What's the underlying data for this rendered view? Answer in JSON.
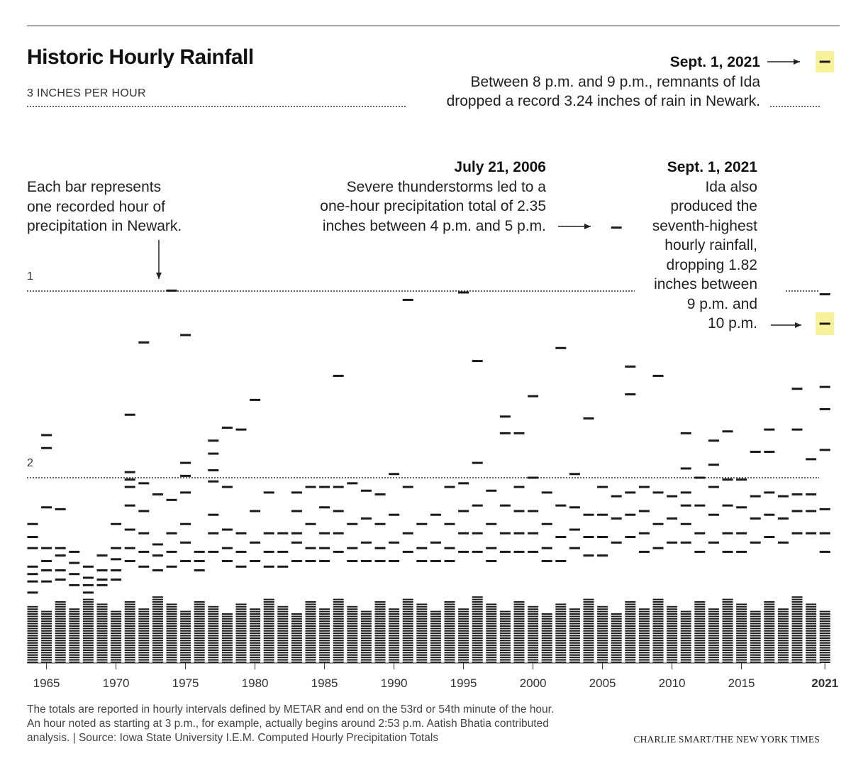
{
  "title": "Historic Hourly Rainfall",
  "reference_lines": [
    {
      "value": 3,
      "label": "3 INCHES PER HOUR"
    },
    {
      "value": 2,
      "label": "2"
    },
    {
      "value": 1,
      "label": "1"
    }
  ],
  "annotations": {
    "record": {
      "date": "Sept. 1, 2021",
      "text_lines": [
        "Between 8 p.m. and 9 p.m., remnants of Ida",
        "dropped a record 3.24 inches of rain in Newark."
      ]
    },
    "explainer": {
      "text_lines": [
        "Each bar represents",
        "one recorded hour of",
        "precipitation in Newark."
      ]
    },
    "july2006": {
      "date": "July 21, 2006",
      "text_lines": [
        "Severe thunderstorms led to a",
        "one-hour precipitation total of 2.35",
        "inches between 4 p.m. and 5 p.m."
      ]
    },
    "seventh": {
      "date": "Sept. 1, 2021",
      "text_lines": [
        "Ida also",
        "produced the",
        "seventh-highest",
        "hourly rainfall,",
        "dropping 1.82",
        "inches between",
        "9 p.m. and",
        "10 p.m."
      ]
    }
  },
  "footnote_lines": [
    "The totals are reported in hourly intervals defined by METAR and end on the 53rd or 54th minute of the hour.",
    "An hour noted as starting at 3 p.m., for example, actually begins around 2:53 p.m. Aatish Bhatia contributed",
    "analysis. | Source: Iowa State University I.E.M. Computed Hourly Precipitation Totals"
  ],
  "credit": "CHARLIE SMART/THE NEW YORK TIMES",
  "colors": {
    "bar": "#1a1a1a",
    "highlight": "#f7f19a",
    "text": "#222222"
  },
  "chart_data": {
    "type": "scatter",
    "description_units": "inches per hour",
    "x_tick_labels": [
      "1965",
      "1970",
      "1975",
      "1980",
      "1985",
      "1990",
      "1995",
      "2000",
      "2005",
      "2010",
      "2015",
      "2021"
    ],
    "x_ticks": [
      1965,
      1970,
      1975,
      1980,
      1985,
      1990,
      1995,
      2000,
      2005,
      2010,
      2015,
      2021
    ],
    "xlim": [
      1964,
      2021
    ],
    "ylim": [
      0,
      3.24
    ],
    "grid": false,
    "notable_hours": [
      {
        "year": 2021,
        "value": 3.24
      },
      {
        "year": 2006,
        "value": 2.35
      },
      {
        "year": 2021,
        "value": 1.82
      }
    ],
    "points": [
      {
        "year": 1964,
        "values": [
          0.75,
          0.68,
          0.62,
          0.52,
          0.48,
          0.44,
          0.38
        ]
      },
      {
        "year": 1965,
        "values": [
          1.23,
          1.16,
          0.84,
          0.62,
          0.55,
          0.5,
          0.44
        ]
      },
      {
        "year": 1966,
        "values": [
          0.83,
          0.62,
          0.58,
          0.5,
          0.45
        ]
      },
      {
        "year": 1967,
        "values": [
          0.6,
          0.54,
          0.48,
          0.42
        ]
      },
      {
        "year": 1968,
        "values": [
          0.52,
          0.46,
          0.42,
          0.38
        ]
      },
      {
        "year": 1969,
        "values": [
          0.58,
          0.5,
          0.45,
          0.42
        ]
      },
      {
        "year": 1970,
        "values": [
          0.75,
          0.62,
          0.56,
          0.5,
          0.45
        ]
      },
      {
        "year": 1971,
        "values": [
          1.34,
          1.03,
          0.99,
          0.95,
          0.85,
          0.72,
          0.62,
          0.55
        ]
      },
      {
        "year": 1972,
        "values": [
          1.73,
          0.97,
          0.82,
          0.7,
          0.6,
          0.52
        ]
      },
      {
        "year": 1973,
        "values": [
          0.91,
          0.64,
          0.58,
          0.5
        ]
      },
      {
        "year": 1974,
        "values": [
          2.01,
          0.88,
          0.7,
          0.6,
          0.52
        ]
      },
      {
        "year": 1975,
        "values": [
          1.77,
          1.08,
          1.01,
          0.92,
          0.75,
          0.65,
          0.55
        ]
      },
      {
        "year": 1976,
        "values": [
          0.6,
          0.55,
          0.5
        ]
      },
      {
        "year": 1977,
        "values": [
          1.2,
          1.13,
          1.04,
          0.98,
          0.8,
          0.7,
          0.6
        ]
      },
      {
        "year": 1978,
        "values": [
          1.27,
          0.95,
          0.72,
          0.62,
          0.55
        ]
      },
      {
        "year": 1979,
        "values": [
          1.26,
          0.7,
          0.6,
          0.52
        ]
      },
      {
        "year": 1980,
        "values": [
          1.42,
          0.82,
          0.65,
          0.55
        ]
      },
      {
        "year": 1981,
        "values": [
          0.92,
          0.7,
          0.6,
          0.52
        ]
      },
      {
        "year": 1982,
        "values": [
          0.7,
          0.6,
          0.52
        ]
      },
      {
        "year": 1983,
        "values": [
          0.92,
          0.82,
          0.7,
          0.65,
          0.55
        ]
      },
      {
        "year": 1984,
        "values": [
          0.95,
          0.75,
          0.62,
          0.55
        ]
      },
      {
        "year": 1985,
        "values": [
          0.95,
          0.84,
          0.7,
          0.62,
          0.55
        ]
      },
      {
        "year": 1986,
        "values": [
          1.55,
          0.95,
          0.82,
          0.7,
          0.6
        ]
      },
      {
        "year": 1987,
        "values": [
          0.97,
          0.75,
          0.62,
          0.55
        ]
      },
      {
        "year": 1988,
        "values": [
          0.93,
          0.78,
          0.65,
          0.55
        ]
      },
      {
        "year": 1989,
        "values": [
          0.91,
          0.75,
          0.62,
          0.55
        ]
      },
      {
        "year": 1990,
        "values": [
          1.02,
          0.8,
          0.65,
          0.55
        ]
      },
      {
        "year": 1991,
        "values": [
          1.96,
          0.95,
          0.7,
          0.6
        ]
      },
      {
        "year": 1992,
        "values": [
          0.75,
          0.62,
          0.55
        ]
      },
      {
        "year": 1993,
        "values": [
          0.8,
          0.65,
          0.55
        ]
      },
      {
        "year": 1994,
        "values": [
          0.95,
          0.75,
          0.62,
          0.55
        ]
      },
      {
        "year": 1995,
        "values": [
          2.0,
          0.97,
          0.82,
          0.7,
          0.6
        ]
      },
      {
        "year": 1996,
        "values": [
          1.63,
          1.08,
          0.85,
          0.7,
          0.6
        ]
      },
      {
        "year": 1997,
        "values": [
          0.93,
          0.75,
          0.62,
          0.55
        ]
      },
      {
        "year": 1998,
        "values": [
          1.33,
          1.24,
          0.85,
          0.7,
          0.6
        ]
      },
      {
        "year": 1999,
        "values": [
          1.24,
          0.95,
          0.82,
          0.7,
          0.6
        ]
      },
      {
        "year": 2000,
        "values": [
          1.44,
          1.0,
          0.82,
          0.7,
          0.6
        ]
      },
      {
        "year": 2001,
        "values": [
          0.92,
          0.75,
          0.62,
          0.55
        ]
      },
      {
        "year": 2002,
        "values": [
          1.7,
          0.85,
          0.68,
          0.55
        ]
      },
      {
        "year": 2003,
        "values": [
          1.02,
          0.84,
          0.72,
          0.62
        ]
      },
      {
        "year": 2004,
        "values": [
          1.32,
          0.8,
          0.68,
          0.58
        ]
      },
      {
        "year": 2005,
        "values": [
          0.95,
          0.8,
          0.68,
          0.58
        ]
      },
      {
        "year": 2006,
        "values": [
          2.35,
          0.9,
          0.78,
          0.65
        ]
      },
      {
        "year": 2007,
        "values": [
          1.6,
          1.45,
          0.92,
          0.8,
          0.68
        ]
      },
      {
        "year": 2008,
        "values": [
          0.95,
          0.82,
          0.7,
          0.6
        ]
      },
      {
        "year": 2009,
        "values": [
          1.55,
          0.92,
          0.75,
          0.62
        ]
      },
      {
        "year": 2010,
        "values": [
          0.9,
          0.78,
          0.65
        ]
      },
      {
        "year": 2011,
        "values": [
          1.24,
          1.05,
          0.92,
          0.85,
          0.75,
          0.65
        ]
      },
      {
        "year": 2012,
        "values": [
          1.0,
          0.85,
          0.7,
          0.6
        ]
      },
      {
        "year": 2013,
        "values": [
          1.2,
          1.07,
          0.95,
          0.8,
          0.65
        ]
      },
      {
        "year": 2014,
        "values": [
          1.25,
          0.99,
          0.85,
          0.7,
          0.6
        ]
      },
      {
        "year": 2015,
        "values": [
          0.99,
          0.84,
          0.7,
          0.6
        ]
      },
      {
        "year": 2016,
        "values": [
          1.14,
          0.9,
          0.78,
          0.65
        ]
      },
      {
        "year": 2017,
        "values": [
          1.26,
          1.14,
          0.92,
          0.8,
          0.68
        ]
      },
      {
        "year": 2018,
        "values": [
          0.9,
          0.78,
          0.65
        ]
      },
      {
        "year": 2019,
        "values": [
          1.48,
          1.26,
          0.91,
          0.82,
          0.7
        ]
      },
      {
        "year": 2020,
        "values": [
          1.1,
          0.91,
          0.82,
          0.7
        ]
      },
      {
        "year": 2021,
        "values": [
          3.24,
          1.99,
          1.82,
          1.49,
          1.37,
          1.15,
          0.83,
          0.7,
          0.6
        ]
      }
    ]
  }
}
